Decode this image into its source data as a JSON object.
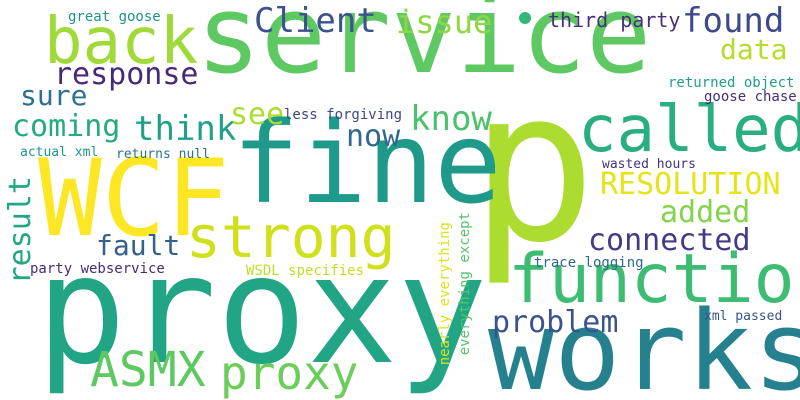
{
  "words": [
    {
      "text": "service",
      "color": "#5ec962"
    },
    {
      "text": "p",
      "color": "#addc30"
    },
    {
      "text": "proxy",
      "color": "#21a585"
    },
    {
      "text": "fine",
      "color": "#1f9a8a"
    },
    {
      "text": "works",
      "color": "#26818e"
    },
    {
      "text": "WCF",
      "color": "#fde725"
    },
    {
      "text": "back",
      "color": "#a0da39"
    },
    {
      "text": "function",
      "color": "#3fbc73"
    },
    {
      "text": "called",
      "color": "#29af7f"
    },
    {
      "text": "strong",
      "color": "#d0e11c"
    },
    {
      "text": "proxy",
      "color": "#6ccd5a"
    },
    {
      "text": "ASMX",
      "color": "#5ec962"
    },
    {
      "text": "Client",
      "color": "#3b528b"
    },
    {
      "text": "issue",
      "color": "#8fd744"
    },
    {
      "text": "found",
      "color": "#3e4989"
    },
    {
      "text": "data",
      "color": "#b5de2b"
    },
    {
      "text": "third party",
      "color": "#48307a"
    },
    {
      "text": "response",
      "color": "#482878"
    },
    {
      "text": "sure",
      "color": "#2c728e"
    },
    {
      "text": "coming",
      "color": "#25ab82"
    },
    {
      "text": "think",
      "color": "#1fa188"
    },
    {
      "text": "see",
      "color": "#addc30"
    },
    {
      "text": "know",
      "color": "#4ac16d"
    },
    {
      "text": "now",
      "color": "#31688e"
    },
    {
      "text": "RESOLUTION",
      "color": "#e5e419"
    },
    {
      "text": "added",
      "color": "#84d44b"
    },
    {
      "text": "connected",
      "color": "#443b84"
    },
    {
      "text": "fault",
      "color": "#355f8d"
    },
    {
      "text": "problem",
      "color": "#3b528b"
    },
    {
      "text": "result",
      "color": "#22a785"
    },
    {
      "text": "great goose",
      "color": "#21918c"
    },
    {
      "text": "less forgiving",
      "color": "#3f4788"
    },
    {
      "text": "returned object",
      "color": "#1f9e89"
    },
    {
      "text": "goose chase",
      "color": "#472d7b"
    },
    {
      "text": "actual xml",
      "color": "#1f988b"
    },
    {
      "text": "returns null",
      "color": "#2c728e"
    },
    {
      "text": "wasted hours",
      "color": "#46327e"
    },
    {
      "text": "party webservice",
      "color": "#472c7a"
    },
    {
      "text": "WSDL specifies",
      "color": "#bddf26"
    },
    {
      "text": "trace logging",
      "color": "#31688e"
    },
    {
      "text": "xml passed",
      "color": "#3a548c"
    },
    {
      "text": "nearly everything",
      "color": "#dde318"
    },
    {
      "text": "everything except",
      "color": "#54c568"
    }
  ],
  "dot": {
    "color": "#35b779"
  }
}
